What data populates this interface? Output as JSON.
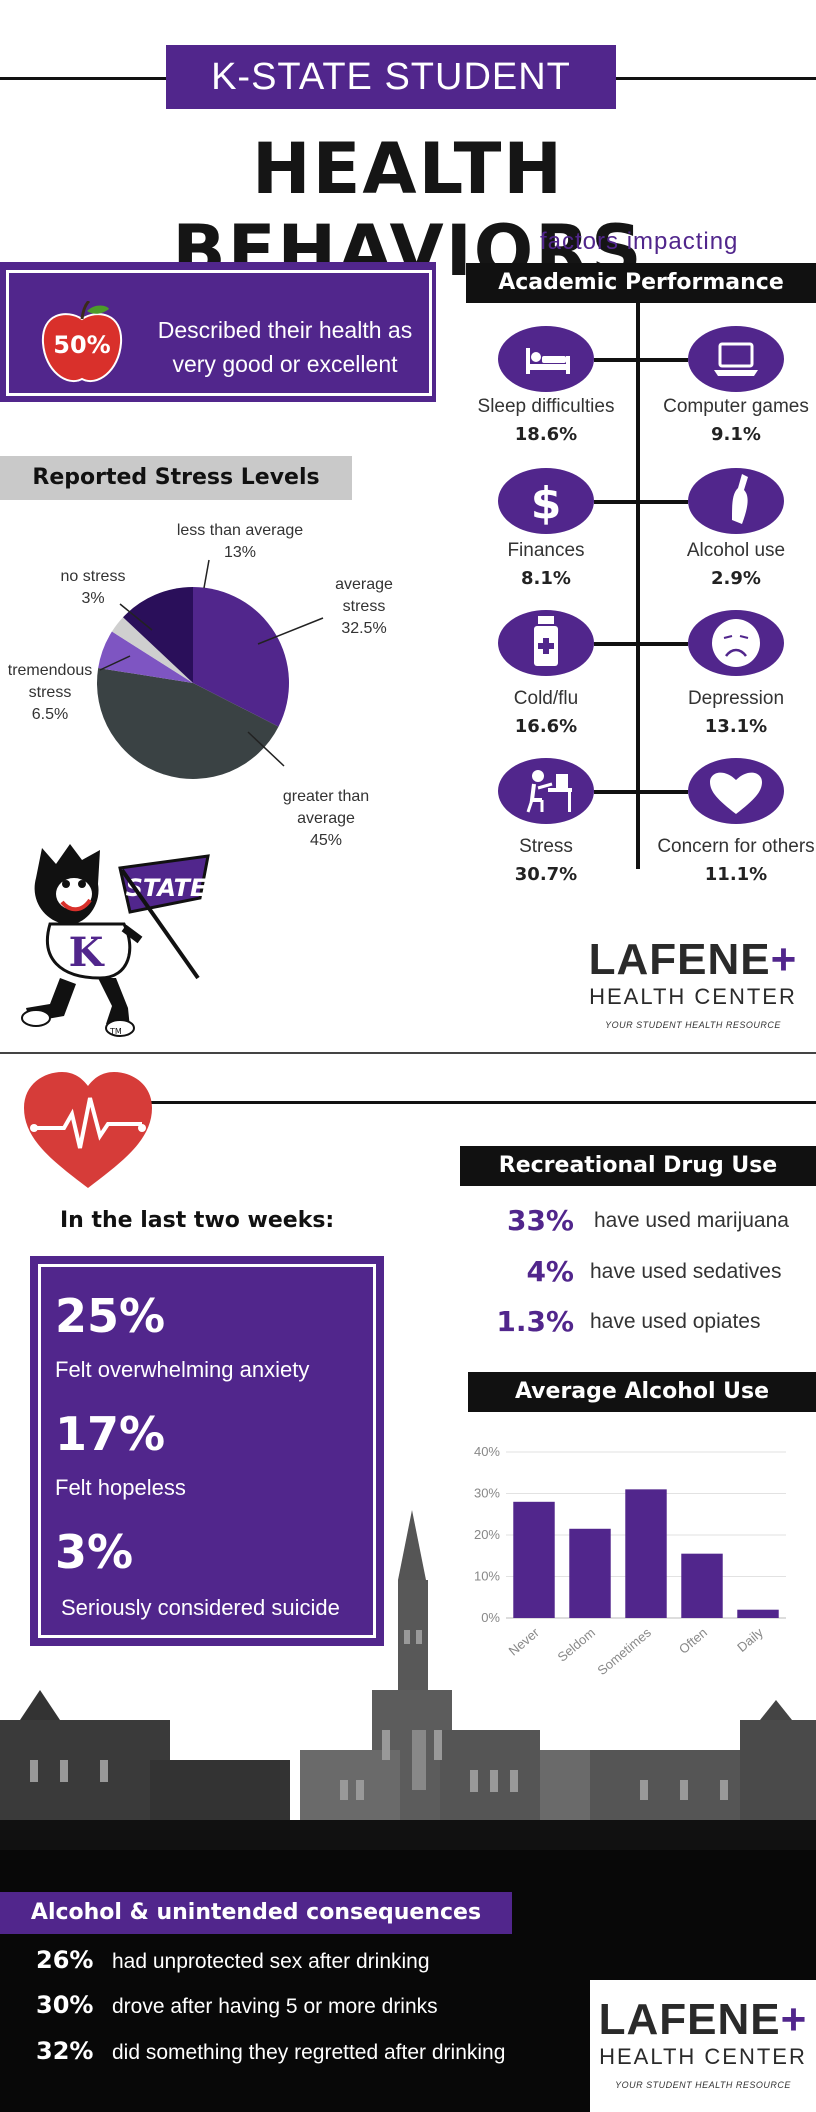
{
  "header": {
    "top_label": "K-STATE STUDENT",
    "main_title": "HEALTH BEHAVIORS"
  },
  "health_rating": {
    "percent": "50%",
    "text": "Described their health as very good or excellent"
  },
  "factors": {
    "subtitle": "factors impacting",
    "title": "Academic Performance",
    "items": [
      {
        "label": "Sleep difficulties",
        "value": "18.6%",
        "icon": "bed-icon"
      },
      {
        "label": "Computer games",
        "value": "9.1%",
        "icon": "laptop-icon"
      },
      {
        "label": "Finances",
        "value": "8.1%",
        "icon": "dollar-icon"
      },
      {
        "label": "Alcohol use",
        "value": "2.9%",
        "icon": "bottle-icon"
      },
      {
        "label": "Cold/flu",
        "value": "16.6%",
        "icon": "medicine-bottle-icon"
      },
      {
        "label": "Depression",
        "value": "13.1%",
        "icon": "sad-face-icon"
      },
      {
        "label": "Stress",
        "value": "30.7%",
        "icon": "stressed-student-icon"
      },
      {
        "label": "Concern for others",
        "value": "11.1%",
        "icon": "heart-icon"
      }
    ]
  },
  "stress": {
    "title": "Reported Stress Levels",
    "slices": [
      {
        "label": "average stress",
        "value": 32.5,
        "display": "32.5%",
        "color": "#51268c"
      },
      {
        "label": "greater than average",
        "value": 45,
        "display": "45%",
        "color": "#3a4244"
      },
      {
        "label": "tremendous stress",
        "value": 6.5,
        "display": "6.5%",
        "color": "#7e55c2"
      },
      {
        "label": "no stress",
        "value": 3,
        "display": "3%",
        "color": "#cfcfcf"
      },
      {
        "label": "less than average",
        "value": 13,
        "display": "13%",
        "color": "#2a0f5a"
      }
    ]
  },
  "lafene": {
    "name": "LAFENE",
    "plus": "+",
    "sub": "HEALTH CENTER",
    "tagline": "YOUR STUDENT HEALTH RESOURCE"
  },
  "mascot": {
    "flag_text": "STATE",
    "shirt_letter": "K",
    "tm": "TM"
  },
  "two_weeks": {
    "title": "In the last two weeks:",
    "items": [
      {
        "percent": "25%",
        "text": "Felt overwhelming anxiety"
      },
      {
        "percent": "17%",
        "text": "Felt hopeless"
      },
      {
        "percent": "3%",
        "text": "Seriously considered suicide"
      }
    ]
  },
  "drugs": {
    "title": "Recreational Drug Use",
    "items": [
      {
        "percent": "33%",
        "text": "have used marijuana"
      },
      {
        "percent": "4%",
        "text": "have used sedatives"
      },
      {
        "percent": "1.3%",
        "text": "have used opiates"
      }
    ]
  },
  "chart_data": {
    "type": "bar",
    "title": "Average Alcohol Use",
    "categories": [
      "Never",
      "Seldom",
      "Sometimes",
      "Often",
      "Daily"
    ],
    "values": [
      28,
      21.5,
      31,
      15.5,
      2
    ],
    "ylim": [
      0,
      40
    ],
    "yticks": [
      "0%",
      "10%",
      "20%",
      "30%",
      "40%"
    ],
    "grid": true,
    "bar_color": "#51268c"
  },
  "consequences": {
    "title": "Alcohol & unintended consequences",
    "items": [
      {
        "percent": "26%",
        "text": "had unprotected sex after drinking"
      },
      {
        "percent": "30%",
        "text": "drove after having 5 or more drinks"
      },
      {
        "percent": "32%",
        "text": "did something they regretted after drinking"
      }
    ]
  }
}
